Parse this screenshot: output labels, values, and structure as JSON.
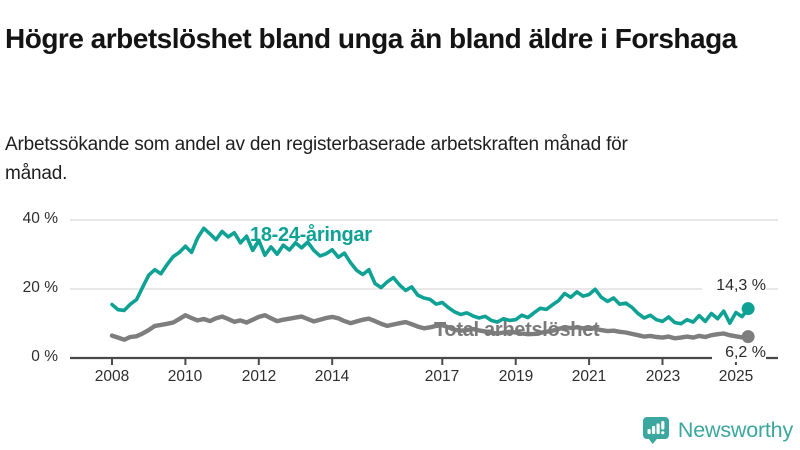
{
  "header": {
    "title": "Högre arbetslöshet bland unga än bland äldre i Forshaga",
    "subtitle": "Arbetssökande som andel av den registerbaserade arbetskraften månad för månad."
  },
  "chart_data": {
    "type": "line",
    "title": "Högre arbetslöshet bland unga än bland äldre i Forshaga",
    "subtitle": "Arbetssökande som andel av den registerbaserade arbetskraften månad för månad.",
    "grid": "horizontal",
    "legend_position": "inline-labels-on-lines",
    "x_ticks": [
      2008,
      2010,
      2012,
      2014,
      2017,
      2019,
      2021,
      2023,
      2025
    ],
    "x_tick_labels": [
      "2008",
      "2010",
      "2012",
      "2014",
      "2017",
      "2019",
      "2021",
      "2023",
      "2025"
    ],
    "y_ticks": [
      0,
      20,
      40
    ],
    "y_tick_labels": [
      "0 %",
      "20 %",
      "40 %"
    ],
    "ylim": [
      0,
      43
    ],
    "xlim": [
      2008.0,
      2025.4
    ],
    "x_unit": "decimal_year",
    "x_start": 2008.0,
    "points_per_year": 6,
    "series": [
      {
        "name": "18-24-åringar",
        "color": "#0fa294",
        "end_value": 14.3,
        "end_label": "14,3 %",
        "values": [
          15.5,
          14.0,
          13.8,
          15.6,
          16.9,
          20.5,
          24.0,
          25.6,
          24.4,
          27.1,
          29.4,
          30.6,
          32.4,
          30.6,
          34.8,
          37.6,
          36.0,
          34.3,
          36.7,
          35.1,
          36.3,
          33.4,
          35.3,
          31.2,
          34.1,
          29.8,
          32.2,
          30.1,
          32.7,
          31.3,
          33.4,
          31.9,
          33.6,
          31.2,
          29.6,
          30.2,
          31.4,
          29.2,
          30.4,
          27.6,
          25.4,
          24.2,
          25.6,
          21.6,
          20.4,
          22.1,
          23.3,
          21.2,
          19.6,
          20.6,
          18.2,
          17.4,
          17.0,
          15.6,
          16.1,
          14.6,
          13.4,
          12.6,
          13.1,
          12.2,
          11.6,
          12.1,
          10.9,
          10.4,
          11.4,
          10.9,
          11.1,
          12.4,
          11.7,
          13.1,
          14.4,
          14.1,
          15.4,
          16.6,
          18.7,
          17.6,
          19.2,
          17.9,
          18.4,
          19.9,
          17.6,
          16.4,
          17.4,
          15.6,
          15.9,
          14.7,
          12.9,
          11.6,
          12.4,
          11.1,
          10.6,
          11.9,
          10.3,
          9.9,
          11.1,
          10.4,
          12.3,
          10.6,
          12.9,
          11.4,
          13.6,
          10.1,
          13.2,
          12.0,
          14.3
        ]
      },
      {
        "name": "Total arbetslöshet",
        "color": "#7e7e7e",
        "end_value": 6.2,
        "end_label": "6,2 %",
        "values": [
          6.5,
          5.9,
          5.3,
          6.1,
          6.3,
          7.1,
          8.1,
          9.3,
          9.6,
          9.9,
          10.3,
          11.3,
          12.4,
          11.6,
          10.9,
          11.3,
          10.7,
          11.5,
          12.0,
          11.3,
          10.5,
          10.9,
          10.3,
          11.1,
          11.9,
          12.4,
          11.5,
          10.7,
          11.1,
          11.4,
          11.7,
          12.0,
          11.3,
          10.6,
          11.1,
          11.6,
          11.9,
          11.5,
          10.7,
          10.1,
          10.6,
          11.1,
          11.4,
          10.7,
          9.9,
          9.3,
          9.7,
          10.1,
          10.4,
          9.8,
          9.1,
          8.6,
          8.9,
          9.3,
          9.5,
          8.9,
          8.2,
          7.9,
          8.1,
          8.4,
          8.0,
          7.7,
          7.3,
          7.1,
          7.4,
          7.6,
          7.4,
          7.1,
          6.9,
          7.0,
          7.3,
          7.6,
          7.9,
          8.4,
          8.9,
          8.7,
          8.9,
          8.6,
          8.8,
          8.5,
          8.1,
          7.8,
          7.9,
          7.6,
          7.4,
          7.0,
          6.6,
          6.2,
          6.4,
          6.1,
          5.9,
          6.2,
          5.7,
          5.9,
          6.2,
          5.9,
          6.4,
          6.1,
          6.6,
          6.9,
          7.1,
          6.6,
          6.3,
          6.0,
          6.2
        ]
      }
    ],
    "colors": {
      "grid": "#d9d9d9",
      "axis": "#4a4a4a",
      "value_label_text": "#2b2b2b"
    }
  },
  "footer": {
    "brand": "Newsworthy",
    "brand_color": "#3ba79e",
    "logo_icon": "bar-chart-speech-bubble-icon"
  }
}
